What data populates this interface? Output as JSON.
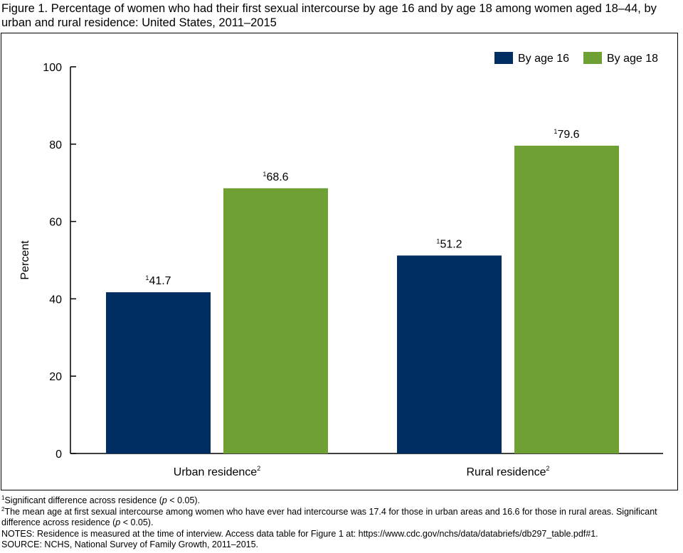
{
  "title": "Figure 1. Percentage of women who had their first sexual intercourse by age 16 and by age 18 among women aged 18–44, by urban and rural residence: United States, 2011–2015",
  "chart_data": {
    "type": "bar",
    "categories": [
      {
        "label": "Urban residence",
        "note": "2"
      },
      {
        "label": "Rural residence",
        "note": "2"
      }
    ],
    "series": [
      {
        "name": "By age 16",
        "color": "#002d62",
        "values": [
          41.7,
          51.2
        ],
        "label_notes": [
          "1",
          "1"
        ]
      },
      {
        "name": "By age 18",
        "color": "#6fa033",
        "values": [
          68.6,
          79.6
        ],
        "label_notes": [
          "1",
          "1"
        ]
      }
    ],
    "ylabel": "Percent",
    "ylim": [
      0,
      100
    ],
    "yticks": [
      0,
      20,
      40,
      60,
      80,
      100
    ],
    "legend": "top-right",
    "grid": false
  },
  "footnotes": [
    {
      "mark": "1",
      "pre": "Significant difference across residence (",
      "italic": "p",
      "post": " < 0.05)."
    },
    {
      "mark": "2",
      "pre": "The mean age at first sexual intercourse among women who have ever had intercourse was 17.4 for those in urban areas and 16.6 for those in rural areas. Significant difference across residence (",
      "italic": "p",
      "post": " < 0.05)."
    }
  ],
  "notes_line": "NOTES: Residence is measured at the time of interview. Access data table for Figure 1 at: https://www.cdc.gov/nchs/data/databriefs/db297_table.pdf#1.",
  "source_line": "SOURCE:  NCHS, National Survey of Family Growth, 2011–2015."
}
